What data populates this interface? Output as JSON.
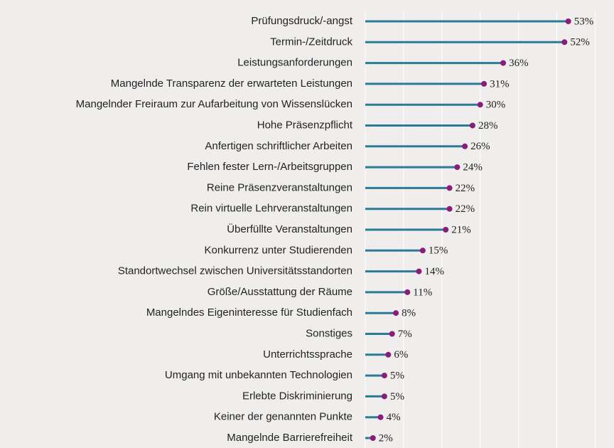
{
  "chart_data": {
    "type": "lollipop",
    "categories": [
      "Prüfungsdruck/-angst",
      "Termin-/Zeitdruck",
      "Leistungsanforderungen",
      "Mangelnde Transparenz der erwarteten Leistungen",
      "Mangelnder Freiraum zur Aufarbeitung von Wissenslücken",
      "Hohe Präsenzpflicht",
      "Anfertigen schriftlicher Arbeiten",
      "Fehlen fester Lern-/Arbeitsgruppen",
      "Reine Präsenzveranstaltungen",
      "Rein virtuelle Lehrveranstaltungen",
      "Überfüllte Veranstaltungen",
      "Konkurrenz unter Studierenden",
      "Standortwechsel zwischen Universitätsstandorten",
      "Größe/Ausstattung der Räume",
      "Mangelndes Eigeninteresse für Studienfach",
      "Sonstiges",
      "Unterrichtssprache",
      "Umgang mit unbekannten Technologien",
      "Erlebte Diskriminierung",
      "Keiner der genannten Punkte",
      "Mangelnde Barrierefreiheit"
    ],
    "values": [
      53,
      52,
      36,
      31,
      30,
      28,
      26,
      24,
      22,
      22,
      21,
      15,
      14,
      11,
      8,
      7,
      6,
      5,
      5,
      4,
      2
    ],
    "value_labels": [
      "53%",
      "52%",
      "36%",
      "31%",
      "30%",
      "28%",
      "26%",
      "24%",
      "22%",
      "22%",
      "21%",
      "15%",
      "14%",
      "11%",
      "8%",
      "7%",
      "6%",
      "5%",
      "5%",
      "4%",
      "2%"
    ],
    "line_color": "#2b7a98",
    "dot_color": "#8a1c7c",
    "xlim": [
      0,
      64
    ],
    "xticks": [
      0,
      10,
      20,
      30,
      40,
      50,
      60
    ],
    "grid": true
  }
}
